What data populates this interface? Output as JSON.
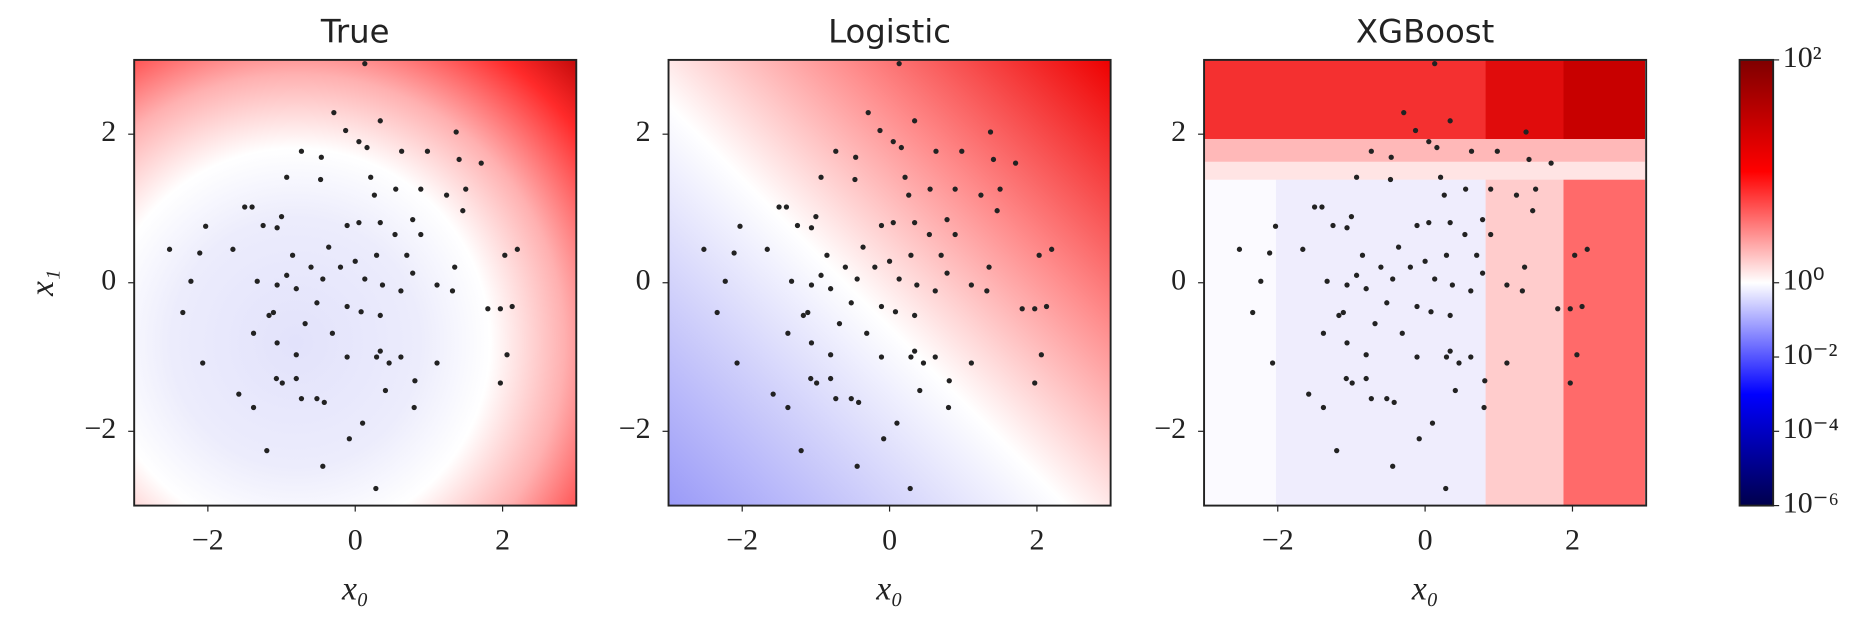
{
  "chart_data": [
    {
      "type": "scatter",
      "title": "True",
      "xlabel": "x₀",
      "ylabel": "x₁",
      "color": "#222222",
      "xlim": [
        -3,
        3
      ],
      "ylim": [
        -3,
        3
      ],
      "xticks": [
        {
          "value": -2,
          "label": "−2"
        },
        0,
        2
      ],
      "yticks": [
        {
          "value": -2,
          "label": "−2"
        },
        0,
        2
      ],
      "x": [
        0.13,
        -0.29,
        -0.13,
        0.05,
        0.34,
        -0.73,
        -0.46,
        0.16,
        1.37,
        1.41,
        1.71,
        0.98,
        0.63,
        -0.93,
        -0.47,
        0.21,
        0.26,
        0.55,
        0.89,
        1.24,
        1.5,
        1.46,
        -1.5,
        -1.4,
        -1.0,
        -1.06,
        -1.25,
        -2.03,
        -2.52,
        -2.11,
        -2.23,
        -2.34,
        -2.07,
        -1.66,
        -0.85,
        -1.33,
        -1.06,
        -0.8,
        -0.93,
        -0.6,
        -0.36,
        -0.11,
        0.05,
        0.34,
        0.54,
        0.78,
        0.89,
        0.7,
        0.29,
        0,
        -0.2,
        -0.44,
        0.13,
        0.37,
        0.62,
        0.78,
        1.35,
        1.32,
        1.11,
        -0.52,
        -0.11,
        0.08,
        0.34,
        -0.68,
        -0.31,
        -1.11,
        -1.38,
        -1.17,
        -0.8,
        -1.06,
        -0.11,
        0.34,
        0.46,
        0.29,
        0.62,
        0.41,
        0.81,
        1.11,
        1.8,
        1.97,
        2.13,
        2.06,
        1.97,
        2.03,
        2.2,
        -1.07,
        -0.99,
        -0.8,
        -0.73,
        -0.52,
        -0.42,
        -1.58,
        0.8,
        0.1,
        -0.08,
        -1.2,
        -0.44,
        0.28,
        -1.38
      ],
      "y": [
        2.95,
        2.29,
        2.05,
        1.9,
        2.18,
        1.77,
        1.69,
        1.82,
        2.03,
        1.66,
        1.61,
        1.77,
        1.77,
        1.42,
        1.39,
        1.42,
        1.18,
        1.26,
        1.26,
        1.18,
        1.26,
        0.97,
        1.02,
        1.02,
        0.89,
        0.74,
        0.77,
        0.76,
        0.45,
        0.4,
        0.02,
        -0.4,
        -1.08,
        0.45,
        0.37,
        0.02,
        -0.03,
        -0.08,
        0.1,
        0.21,
        0.48,
        0.77,
        0.81,
        0.81,
        0.65,
        0.85,
        0.65,
        0.37,
        0.37,
        0.29,
        0.21,
        0.05,
        0.05,
        -0.03,
        -0.11,
        0.13,
        0.21,
        -0.11,
        -0.03,
        -0.27,
        -0.32,
        -0.39,
        -0.44,
        -0.55,
        -0.68,
        -0.4,
        -0.68,
        -0.44,
        -0.97,
        -0.81,
        -1.0,
        -0.92,
        -1.08,
        -1.0,
        -1.0,
        -1.45,
        -1.32,
        -1.08,
        -0.35,
        -0.35,
        -0.32,
        -0.97,
        -1.35,
        0.37,
        0.45,
        -1.29,
        -1.35,
        -1.29,
        -1.56,
        -1.56,
        -1.61,
        -1.5,
        -1.68,
        -1.89,
        -2.1,
        -2.26,
        -2.47,
        -2.77,
        -1.68
      ]
    },
    {
      "type": "scatter",
      "title": "Logistic",
      "xlabel": "x₀",
      "color": "#222222",
      "xlim": [
        -3,
        3
      ],
      "ylim": [
        -3,
        3
      ],
      "xticks": [
        {
          "value": -2,
          "label": "−2"
        },
        0,
        2
      ],
      "yticks": [
        {
          "value": -2,
          "label": "−2"
        },
        0,
        2
      ],
      "x": [
        0.13,
        -0.29,
        -0.13,
        0.05,
        0.34,
        -0.73,
        -0.46,
        0.16,
        1.37,
        1.41,
        1.71,
        0.98,
        0.63,
        -0.93,
        -0.47,
        0.21,
        0.26,
        0.55,
        0.89,
        1.24,
        1.5,
        1.46,
        -1.5,
        -1.4,
        -1.0,
        -1.06,
        -1.25,
        -2.03,
        -2.52,
        -2.11,
        -2.23,
        -2.34,
        -2.07,
        -1.66,
        -0.85,
        -1.33,
        -1.06,
        -0.8,
        -0.93,
        -0.6,
        -0.36,
        -0.11,
        0.05,
        0.34,
        0.54,
        0.78,
        0.89,
        0.7,
        0.29,
        0,
        -0.2,
        -0.44,
        0.13,
        0.37,
        0.62,
        0.78,
        1.35,
        1.32,
        1.11,
        -0.52,
        -0.11,
        0.08,
        0.34,
        -0.68,
        -0.31,
        -1.11,
        -1.38,
        -1.17,
        -0.8,
        -1.06,
        -0.11,
        0.34,
        0.46,
        0.29,
        0.62,
        0.41,
        0.81,
        1.11,
        1.8,
        1.97,
        2.13,
        2.06,
        1.97,
        2.03,
        2.2,
        -1.07,
        -0.99,
        -0.8,
        -0.73,
        -0.52,
        -0.42,
        -1.58,
        0.8,
        0.1,
        -0.08,
        -1.2,
        -0.44,
        0.28,
        -1.38
      ],
      "y": [
        2.95,
        2.29,
        2.05,
        1.9,
        2.18,
        1.77,
        1.69,
        1.82,
        2.03,
        1.66,
        1.61,
        1.77,
        1.77,
        1.42,
        1.39,
        1.42,
        1.18,
        1.26,
        1.26,
        1.18,
        1.26,
        0.97,
        1.02,
        1.02,
        0.89,
        0.74,
        0.77,
        0.76,
        0.45,
        0.4,
        0.02,
        -0.4,
        -1.08,
        0.45,
        0.37,
        0.02,
        -0.03,
        -0.08,
        0.1,
        0.21,
        0.48,
        0.77,
        0.81,
        0.81,
        0.65,
        0.85,
        0.65,
        0.37,
        0.37,
        0.29,
        0.21,
        0.05,
        0.05,
        -0.03,
        -0.11,
        0.13,
        0.21,
        -0.11,
        -0.03,
        -0.27,
        -0.32,
        -0.39,
        -0.44,
        -0.55,
        -0.68,
        -0.4,
        -0.68,
        -0.44,
        -0.97,
        -0.81,
        -1.0,
        -0.92,
        -1.08,
        -1.0,
        -1.0,
        -1.45,
        -1.32,
        -1.08,
        -0.35,
        -0.35,
        -0.32,
        -0.97,
        -1.35,
        0.37,
        0.45,
        -1.29,
        -1.35,
        -1.29,
        -1.56,
        -1.56,
        -1.61,
        -1.5,
        -1.68,
        -1.89,
        -2.1,
        -2.26,
        -2.47,
        -2.77,
        -1.68
      ]
    },
    {
      "type": "scatter",
      "title": "XGBoost",
      "xlabel": "x₀",
      "color": "#222222",
      "xlim": [
        -3,
        3
      ],
      "ylim": [
        -3,
        3
      ],
      "xticks": [
        {
          "value": -2,
          "label": "−2"
        },
        0,
        2
      ],
      "yticks": [
        {
          "value": -2,
          "label": "−2"
        },
        0,
        2
      ],
      "x": [
        0.13,
        -0.29,
        -0.13,
        0.05,
        0.34,
        -0.73,
        -0.46,
        0.16,
        1.37,
        1.41,
        1.71,
        0.98,
        0.63,
        -0.93,
        -0.47,
        0.21,
        0.26,
        0.55,
        0.89,
        1.24,
        1.5,
        1.46,
        -1.5,
        -1.4,
        -1.0,
        -1.06,
        -1.25,
        -2.03,
        -2.52,
        -2.11,
        -2.23,
        -2.34,
        -2.07,
        -1.66,
        -0.85,
        -1.33,
        -1.06,
        -0.8,
        -0.93,
        -0.6,
        -0.36,
        -0.11,
        0.05,
        0.34,
        0.54,
        0.78,
        0.89,
        0.7,
        0.29,
        0,
        -0.2,
        -0.44,
        0.13,
        0.37,
        0.62,
        0.78,
        1.35,
        1.32,
        1.11,
        -0.52,
        -0.11,
        0.08,
        0.34,
        -0.68,
        -0.31,
        -1.11,
        -1.38,
        -1.17,
        -0.8,
        -1.06,
        -0.11,
        0.34,
        0.46,
        0.29,
        0.62,
        0.41,
        0.81,
        1.11,
        1.8,
        1.97,
        2.13,
        2.06,
        1.97,
        2.03,
        2.2,
        -1.07,
        -0.99,
        -0.8,
        -0.73,
        -0.52,
        -0.42,
        -1.58,
        0.8,
        0.1,
        -0.08,
        -1.2,
        -0.44,
        0.28,
        -1.38
      ],
      "y": [
        2.95,
        2.29,
        2.05,
        1.9,
        2.18,
        1.77,
        1.69,
        1.82,
        2.03,
        1.66,
        1.61,
        1.77,
        1.77,
        1.42,
        1.39,
        1.42,
        1.18,
        1.26,
        1.26,
        1.18,
        1.26,
        0.97,
        1.02,
        1.02,
        0.89,
        0.74,
        0.77,
        0.76,
        0.45,
        0.4,
        0.02,
        -0.4,
        -1.08,
        0.45,
        0.37,
        0.02,
        -0.03,
        -0.08,
        0.1,
        0.21,
        0.48,
        0.77,
        0.81,
        0.81,
        0.65,
        0.85,
        0.65,
        0.37,
        0.37,
        0.29,
        0.21,
        0.05,
        0.05,
        -0.03,
        -0.11,
        0.13,
        0.21,
        -0.11,
        -0.03,
        -0.27,
        -0.32,
        -0.39,
        -0.44,
        -0.55,
        -0.68,
        -0.4,
        -0.68,
        -0.44,
        -0.97,
        -0.81,
        -1.0,
        -0.92,
        -1.08,
        -1.0,
        -1.0,
        -1.45,
        -1.32,
        -1.08,
        -0.35,
        -0.35,
        -0.32,
        -0.97,
        -1.35,
        0.37,
        0.45,
        -1.29,
        -1.35,
        -1.29,
        -1.56,
        -1.56,
        -1.61,
        -1.5,
        -1.68,
        -1.89,
        -2.1,
        -2.26,
        -2.47,
        -2.77,
        -1.68
      ]
    },
    {
      "type": "colorbar",
      "log": true,
      "clim": [
        1e-06,
        100
      ],
      "center": 1,
      "cmap": [
        "#00004c",
        "#0000ff",
        "#ffffff",
        "#ff0000",
        "#7f0000"
      ],
      "ticks": [
        {
          "value": 100,
          "label": "10²"
        },
        {
          "value": 1,
          "label": "10⁰"
        },
        {
          "value": 0.01,
          "label": "10⁻²"
        },
        {
          "value": 0.0001,
          "label": "10⁻⁴"
        },
        {
          "value": 1e-06,
          "label": "10⁻⁶"
        }
      ]
    }
  ]
}
